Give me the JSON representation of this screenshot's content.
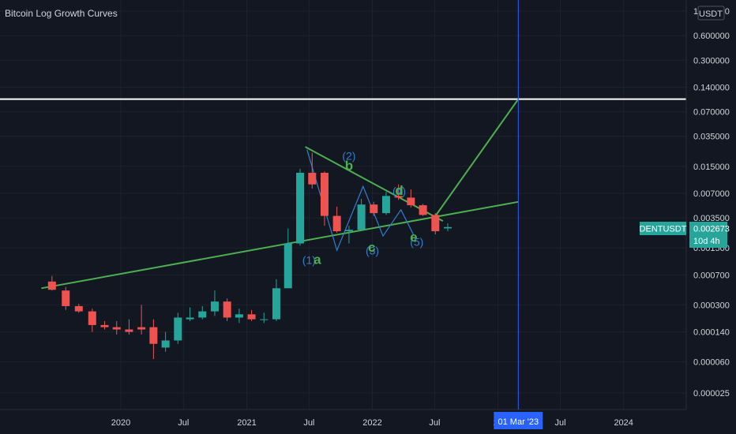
{
  "indicator": {
    "title": "Bitcoin Log Growth Curves"
  },
  "price_axis": {
    "currency": "USDT",
    "labels": [
      "1.200000",
      "0.600000",
      "0.300000",
      "0.140000",
      "0.070000",
      "0.035000",
      "0.015000",
      "0.007000",
      "0.003500",
      "0.001500",
      "0.000700",
      "0.000300",
      "0.000140",
      "0.000060",
      "0.000025"
    ]
  },
  "symbol_tag": {
    "symbol": "DENTUSDT",
    "price": "0.002673",
    "countdown": "10d 4h",
    "color": "#26a69a"
  },
  "crosshair": {
    "date_label": "01 Mar '23",
    "color": "#2962ff"
  },
  "horizontal_line": {
    "price": 0.1,
    "color": "#ffffff"
  },
  "wave_labels": [
    {
      "text": "(1)",
      "style": "blue",
      "date": "2021-07-01",
      "price": 0.00095
    },
    {
      "text": "a",
      "style": "green",
      "date": "2021-07-25",
      "price": 0.00095
    },
    {
      "text": "(2)",
      "style": "blue",
      "date": "2021-10-25",
      "price": 0.018
    },
    {
      "text": "b",
      "style": "green",
      "date": "2021-10-25",
      "price": 0.0135
    },
    {
      "text": "(3)",
      "style": "blue",
      "date": "2022-01-01",
      "price": 0.00125
    },
    {
      "text": "c",
      "style": "green",
      "date": "2021-12-30",
      "price": 0.00135
    },
    {
      "text": "(4)",
      "style": "blue",
      "date": "2022-03-20",
      "price": 0.0067
    },
    {
      "text": "d",
      "style": "green",
      "date": "2022-03-20",
      "price": 0.0067
    },
    {
      "text": "(5)",
      "style": "blue",
      "date": "2022-05-10",
      "price": 0.0016
    },
    {
      "text": "e",
      "style": "green",
      "date": "2022-05-01",
      "price": 0.0018
    }
  ],
  "chart_data": {
    "type": "candlestick",
    "title": "",
    "timeframe": "10d",
    "y_scale": "log",
    "y_range": [
      2e-05,
      1.5
    ],
    "x_range": [
      "2019-01-15",
      "2024-07-01"
    ],
    "time_tick_labels": [
      {
        "text": "2020",
        "date": "2020-01-01"
      },
      {
        "text": "Jul",
        "date": "2020-07-01"
      },
      {
        "text": "2021",
        "date": "2021-01-01"
      },
      {
        "text": "Jul",
        "date": "2021-07-01"
      },
      {
        "text": "2022",
        "date": "2022-01-01"
      },
      {
        "text": "Jul",
        "date": "2022-07-01"
      },
      {
        "text": "20",
        "date": "2023-01-01"
      },
      {
        "text": "Jul",
        "date": "2023-07-01"
      },
      {
        "text": "2024",
        "date": "2024-01-01"
      }
    ],
    "up_color": "#26a69a",
    "down_color": "#ef5350",
    "candles": [
      {
        "date": "2019-06-15",
        "o": 0.00058,
        "h": 0.00068,
        "l": 0.00045,
        "c": 0.00046
      },
      {
        "date": "2019-07-25",
        "o": 0.00045,
        "h": 0.0005,
        "l": 0.00026,
        "c": 0.00029
      },
      {
        "date": "2019-09-01",
        "o": 0.00029,
        "h": 0.00031,
        "l": 0.00024,
        "c": 0.00025
      },
      {
        "date": "2019-10-10",
        "o": 0.00025,
        "h": 0.00027,
        "l": 0.00014,
        "c": 0.00017
      },
      {
        "date": "2019-11-15",
        "o": 0.00017,
        "h": 0.00019,
        "l": 0.00015,
        "c": 0.00016
      },
      {
        "date": "2019-12-20",
        "o": 0.00016,
        "h": 0.00019,
        "l": 0.00013,
        "c": 0.00015
      },
      {
        "date": "2020-01-25",
        "o": 0.00015,
        "h": 0.0002,
        "l": 0.00013,
        "c": 0.00014
      },
      {
        "date": "2020-03-01",
        "o": 0.00016,
        "h": 0.0003,
        "l": 0.00013,
        "c": 0.00015
      },
      {
        "date": "2020-04-05",
        "o": 0.00016,
        "h": 0.0002,
        "l": 6.5e-05,
        "c": 0.0001
      },
      {
        "date": "2020-05-10",
        "o": 9e-05,
        "h": 0.00014,
        "l": 8e-05,
        "c": 0.00011
      },
      {
        "date": "2020-06-15",
        "o": 0.00011,
        "h": 0.00024,
        "l": 0.0001,
        "c": 0.00021
      },
      {
        "date": "2020-07-20",
        "o": 0.0002,
        "h": 0.00028,
        "l": 0.00019,
        "c": 0.00021
      },
      {
        "date": "2020-08-25",
        "o": 0.00021,
        "h": 0.00029,
        "l": 0.0002,
        "c": 0.00025
      },
      {
        "date": "2020-09-30",
        "o": 0.00025,
        "h": 0.00045,
        "l": 0.00022,
        "c": 0.00033
      },
      {
        "date": "2020-11-05",
        "o": 0.00033,
        "h": 0.00036,
        "l": 0.00019,
        "c": 0.00021
      },
      {
        "date": "2020-12-10",
        "o": 0.00021,
        "h": 0.00027,
        "l": 0.00018,
        "c": 0.00023
      },
      {
        "date": "2021-01-15",
        "o": 0.00023,
        "h": 0.00026,
        "l": 0.00019,
        "c": 0.0002
      },
      {
        "date": "2021-02-20",
        "o": 0.0002,
        "h": 0.00024,
        "l": 0.00018,
        "c": 0.0002
      },
      {
        "date": "2021-03-28",
        "o": 0.0002,
        "h": 0.00062,
        "l": 0.00019,
        "c": 0.00048
      },
      {
        "date": "2021-05-01",
        "o": 0.00048,
        "h": 0.0026,
        "l": 0.00048,
        "c": 0.0017
      },
      {
        "date": "2021-06-05",
        "o": 0.0017,
        "h": 0.014,
        "l": 0.0016,
        "c": 0.0125
      },
      {
        "date": "2021-07-10",
        "o": 0.0125,
        "h": 0.022,
        "l": 0.008,
        "c": 0.009
      },
      {
        "date": "2021-08-15",
        "o": 0.0125,
        "h": 0.013,
        "l": 0.0028,
        "c": 0.0037
      },
      {
        "date": "2021-09-20",
        "o": 0.0037,
        "h": 0.0048,
        "l": 0.0023,
        "c": 0.0024
      },
      {
        "date": "2021-10-25",
        "o": 0.0024,
        "h": 0.0028,
        "l": 0.0017,
        "c": 0.0025
      },
      {
        "date": "2021-11-30",
        "o": 0.0025,
        "h": 0.006,
        "l": 0.0024,
        "c": 0.0051
      },
      {
        "date": "2022-01-05",
        "o": 0.0051,
        "h": 0.0055,
        "l": 0.0037,
        "c": 0.004
      },
      {
        "date": "2022-02-10",
        "o": 0.004,
        "h": 0.0073,
        "l": 0.0038,
        "c": 0.0065
      },
      {
        "date": "2022-03-18",
        "o": 0.0065,
        "h": 0.009,
        "l": 0.0058,
        "c": 0.0062
      },
      {
        "date": "2022-04-23",
        "o": 0.0062,
        "h": 0.0078,
        "l": 0.0047,
        "c": 0.005
      },
      {
        "date": "2022-05-28",
        "o": 0.005,
        "h": 0.0052,
        "l": 0.0037,
        "c": 0.0038
      },
      {
        "date": "2022-07-03",
        "o": 0.0038,
        "h": 0.004,
        "l": 0.0022,
        "c": 0.0024
      },
      {
        "date": "2022-08-08",
        "o": 0.0026,
        "h": 0.003,
        "l": 0.0024,
        "c": 0.0027
      }
    ],
    "trend_lines": [
      {
        "name": "support",
        "color": "#4caf50",
        "points": [
          {
            "date": "2019-05-15",
            "price": 0.00048
          },
          {
            "date": "2023-03-01",
            "price": 0.0055
          }
        ]
      },
      {
        "name": "resistance",
        "color": "#4caf50",
        "points": [
          {
            "date": "2021-06-20",
            "price": 0.026
          },
          {
            "date": "2022-07-25",
            "price": 0.0032
          }
        ]
      },
      {
        "name": "projection",
        "color": "#4caf50",
        "points": [
          {
            "date": "2022-06-25",
            "price": 0.0033
          },
          {
            "date": "2023-03-01",
            "price": 0.1
          }
        ]
      }
    ],
    "wave_path": {
      "color": "#2f80d0",
      "points": [
        {
          "date": "2021-06-25",
          "price": 0.024
        },
        {
          "date": "2021-09-20",
          "price": 0.0014
        },
        {
          "date": "2021-12-05",
          "price": 0.0085
        },
        {
          "date": "2022-02-01",
          "price": 0.0021
        },
        {
          "date": "2022-03-25",
          "price": 0.0044
        },
        {
          "date": "2022-04-30",
          "price": 0.0022
        }
      ]
    }
  }
}
